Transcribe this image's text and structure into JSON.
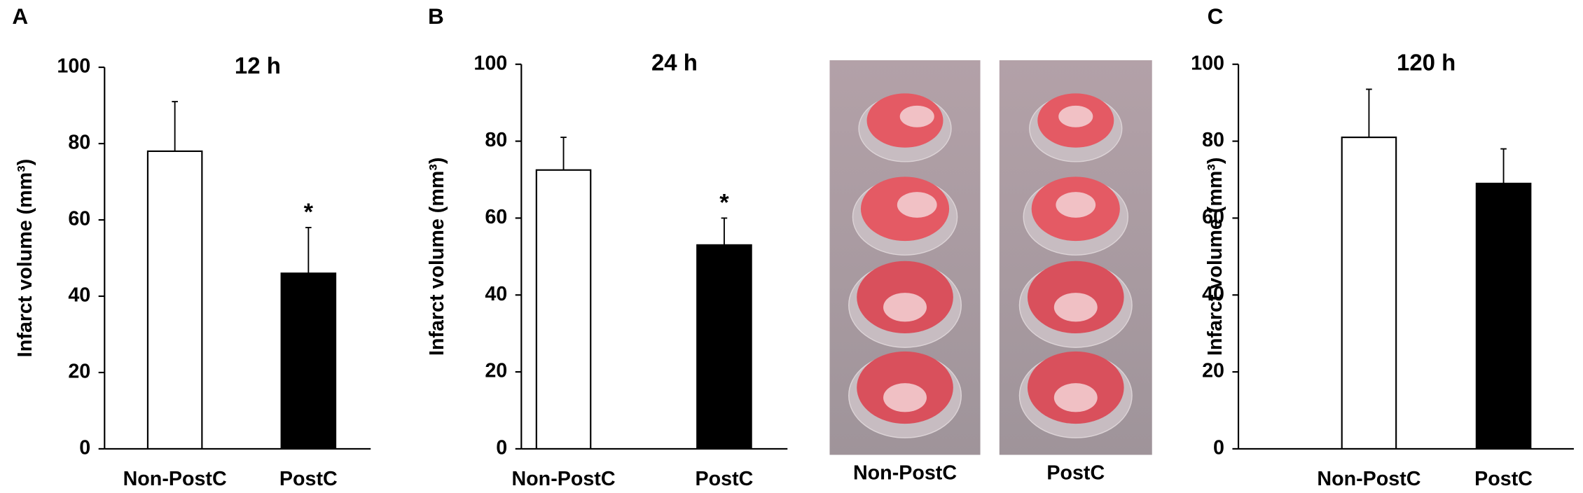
{
  "chart_data": [
    {
      "type": "bar",
      "panel": "A",
      "title": "12 h",
      "ylabel": "Infarct volume (mm³)",
      "categories": [
        "Non-PostC",
        "PostC"
      ],
      "values": [
        78,
        46
      ],
      "errors": [
        13,
        12
      ],
      "colors": [
        "#ffffff",
        "#000000"
      ],
      "significance": [
        null,
        "*"
      ],
      "ylim": [
        0,
        100
      ],
      "yticks": [
        0,
        20,
        40,
        60,
        80,
        100
      ]
    },
    {
      "type": "bar",
      "panel": "B",
      "title": "24 h",
      "ylabel": "Infarct volume (mm³)",
      "categories": [
        "Non-PostC",
        "PostC"
      ],
      "values": [
        72.5,
        53
      ],
      "errors": [
        8.5,
        7
      ],
      "colors": [
        "#ffffff",
        "#000000"
      ],
      "significance": [
        null,
        "*"
      ],
      "ylim": [
        0,
        100
      ],
      "yticks": [
        0,
        20,
        40,
        60,
        80,
        100
      ]
    },
    {
      "type": "bar",
      "panel": "C",
      "title": "120 h",
      "ylabel": "Infarct volume (mm³)",
      "categories": [
        "Non-PostC",
        "PostC"
      ],
      "values": [
        81,
        69
      ],
      "errors": [
        12.5,
        9
      ],
      "colors": [
        "#ffffff",
        "#000000"
      ],
      "significance": [
        null,
        null
      ],
      "ylim": [
        0,
        100
      ],
      "yticks": [
        0,
        20,
        40,
        60,
        80,
        100
      ]
    }
  ],
  "photo_panel": {
    "labels": [
      "Non-PostC",
      "PostC"
    ]
  }
}
